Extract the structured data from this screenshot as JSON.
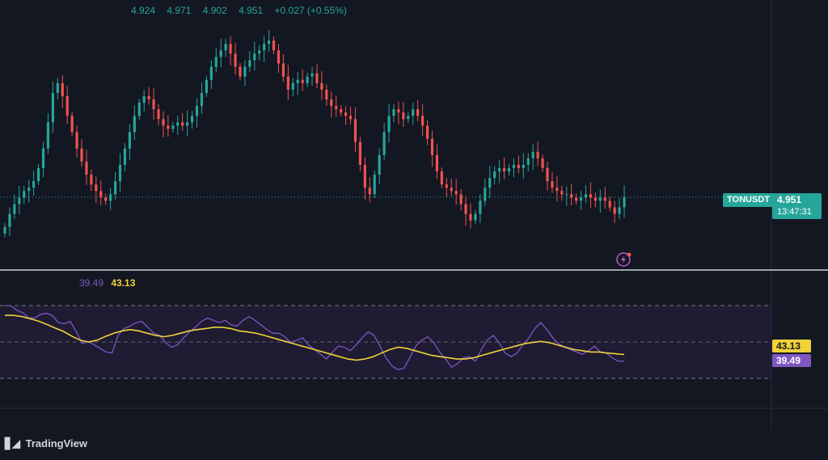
{
  "ohlc": {
    "open": "4.924",
    "high": "4.971",
    "low": "4.902",
    "close": "4.951",
    "change": "+0.027 (+0.55%)"
  },
  "symbol": "TONUSDT",
  "last_price": "4.951",
  "countdown": "13:47:31",
  "rsi_legend": {
    "rsi": "39.49",
    "ma": "43.13"
  },
  "brand": "TradingView",
  "colors": {
    "background": "#131722",
    "up": "#26a69a",
    "down": "#ef5350",
    "rsi": "#7e57c2",
    "rsi_ma": "#f0d23a",
    "rsi_band": "#1f1b33"
  },
  "chart_data": [
    {
      "type": "candlestick",
      "y_axis_labels": [],
      "last_price": 4.951,
      "series": [
        {
          "name": "TONUSDT",
          "close": [
            4.86,
            4.9,
            4.93,
            4.95,
            4.97,
            4.98,
            5.0,
            5.04,
            5.1,
            5.18,
            5.27,
            5.3,
            5.26,
            5.2,
            5.15,
            5.1,
            5.06,
            5.02,
            4.99,
            4.97,
            4.95,
            4.94,
            4.96,
            5.0,
            5.05,
            5.1,
            5.15,
            5.2,
            5.24,
            5.26,
            5.25,
            5.22,
            5.19,
            5.17,
            5.16,
            5.17,
            5.18,
            5.17,
            5.18,
            5.2,
            5.23,
            5.27,
            5.31,
            5.35,
            5.38,
            5.4,
            5.42,
            5.39,
            5.35,
            5.32,
            5.35,
            5.37,
            5.39,
            5.4,
            5.42,
            5.43,
            5.4,
            5.36,
            5.32,
            5.28,
            5.3,
            5.31,
            5.3,
            5.32,
            5.33,
            5.3,
            5.28,
            5.25,
            5.23,
            5.22,
            5.21,
            5.2,
            5.19,
            5.12,
            5.05,
            4.98,
            4.96,
            5.02,
            5.08,
            5.15,
            5.2,
            5.22,
            5.21,
            5.19,
            5.2,
            5.22,
            5.2,
            5.17,
            5.13,
            5.08,
            5.03,
            4.99,
            4.98,
            4.97,
            4.96,
            4.93,
            4.9,
            4.88,
            4.9,
            4.94,
            4.98,
            5.01,
            5.03,
            5.04,
            5.03,
            5.04,
            5.05,
            5.04,
            5.05,
            5.07,
            5.09,
            5.07,
            5.04,
            5.0,
            4.98,
            4.97,
            4.96,
            4.96,
            4.95,
            4.94,
            4.95,
            4.96,
            4.95,
            4.94,
            4.95,
            4.94,
            4.92,
            4.9,
            4.92,
            4.951
          ]
        }
      ]
    },
    {
      "type": "line",
      "title": "RSI",
      "ylim": [
        0,
        100
      ],
      "bands": [
        70,
        50,
        30
      ],
      "series": [
        {
          "name": "RSI",
          "values": [
            70.0,
            70.0,
            67.4,
            66.1,
            63.2,
            63.2,
            65.2,
            65.8,
            64.5,
            60.6,
            60.0,
            61.3,
            55.5,
            49.0,
            50.3,
            48.4,
            46.5,
            44.5,
            43.9,
            53.6,
            57.4,
            58.7,
            60.6,
            61.3,
            58.1,
            54.8,
            53.6,
            49.7,
            47.1,
            48.4,
            52.3,
            55.5,
            58.1,
            61.3,
            63.2,
            61.9,
            60.6,
            61.9,
            59.4,
            58.7,
            61.9,
            63.9,
            61.9,
            59.4,
            56.8,
            54.8,
            54.8,
            52.9,
            49.7,
            51.0,
            52.3,
            48.4,
            45.8,
            43.2,
            40.6,
            44.5,
            47.7,
            47.1,
            45.2,
            48.4,
            52.3,
            55.5,
            53.6,
            47.7,
            41.3,
            36.8,
            34.8,
            35.5,
            41.3,
            47.7,
            51.0,
            52.9,
            49.7,
            44.5,
            40.6,
            36.1,
            38.1,
            41.3,
            41.9,
            39.4,
            45.8,
            51.0,
            53.6,
            49.7,
            43.9,
            41.9,
            43.9,
            48.4,
            52.3,
            57.4,
            60.6,
            56.8,
            52.3,
            49.0,
            47.1,
            45.8,
            44.5,
            43.2,
            45.2,
            47.7,
            44.5,
            43.9,
            41.3,
            39.4,
            39.49
          ]
        },
        {
          "name": "MA",
          "values": [
            64.6,
            64.6,
            64.0,
            62.8,
            61.5,
            59.7,
            57.7,
            55.8,
            53.2,
            51.0,
            50.0,
            51.0,
            53.0,
            54.8,
            56.1,
            56.8,
            56.1,
            54.8,
            53.6,
            52.9,
            53.6,
            54.8,
            56.1,
            56.8,
            57.4,
            58.1,
            58.1,
            57.4,
            56.1,
            55.5,
            54.8,
            53.6,
            52.3,
            51.0,
            49.7,
            48.4,
            47.1,
            45.8,
            44.5,
            43.2,
            41.9,
            40.6,
            40.0,
            40.6,
            41.9,
            43.9,
            45.8,
            47.1,
            46.5,
            45.2,
            43.9,
            42.6,
            41.9,
            41.3,
            40.6,
            40.6,
            41.3,
            42.6,
            43.9,
            45.2,
            46.5,
            47.7,
            49.0,
            49.7,
            50.3,
            49.7,
            48.4,
            47.1,
            45.8,
            45.2,
            44.5,
            44.5,
            43.9,
            43.5,
            43.13
          ]
        }
      ]
    }
  ]
}
